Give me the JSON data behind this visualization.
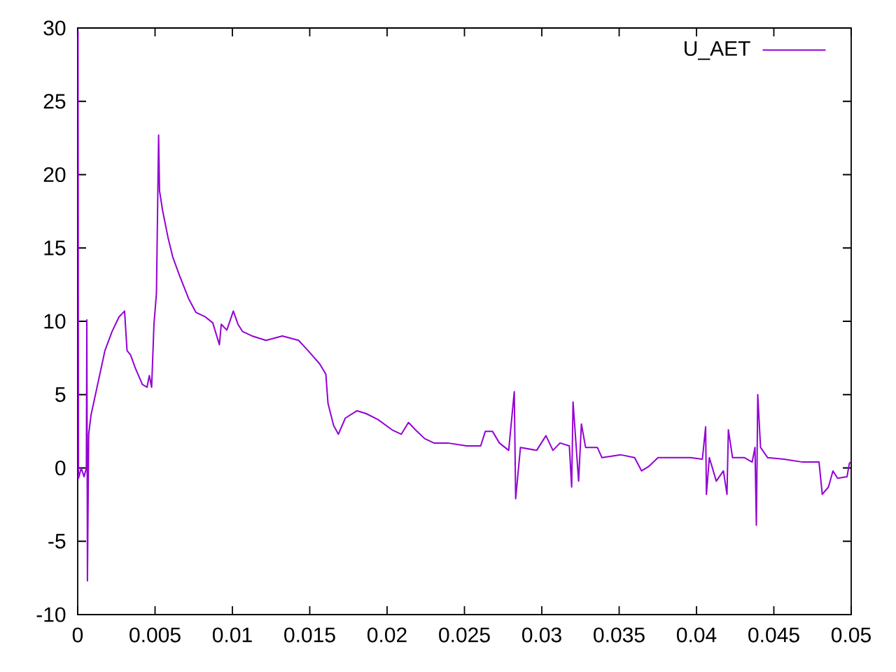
{
  "chart_data": {
    "type": "line",
    "x": [
      0,
      2e-05,
      5e-05,
      0.00023,
      0.00041,
      0.00056,
      0.00059,
      0.00063,
      0.00071,
      0.00086,
      0.00131,
      0.00176,
      0.00222,
      0.00267,
      0.00303,
      0.00319,
      0.00342,
      0.00373,
      0.00418,
      0.00448,
      0.00463,
      0.00478,
      0.00493,
      0.00509,
      0.00523,
      0.00529,
      0.00548,
      0.00584,
      0.00614,
      0.00659,
      0.00719,
      0.00765,
      0.00825,
      0.00873,
      0.00916,
      0.00928,
      0.00964,
      0.01006,
      0.01036,
      0.01066,
      0.01127,
      0.01217,
      0.01323,
      0.01428,
      0.01489,
      0.01564,
      0.01604,
      0.01618,
      0.01654,
      0.01685,
      0.0173,
      0.01805,
      0.01866,
      0.01941,
      0.02032,
      0.02092,
      0.02138,
      0.02183,
      0.02243,
      0.02303,
      0.02394,
      0.02514,
      0.02605,
      0.02635,
      0.02681,
      0.02726,
      0.02786,
      0.02822,
      0.02831,
      0.02862,
      0.02967,
      0.03027,
      0.03072,
      0.03118,
      0.03178,
      0.03193,
      0.03202,
      0.03238,
      0.03256,
      0.03283,
      0.03359,
      0.03389,
      0.03509,
      0.036,
      0.03645,
      0.03691,
      0.03751,
      0.03842,
      0.03962,
      0.04038,
      0.04059,
      0.04064,
      0.04083,
      0.04128,
      0.04174,
      0.04197,
      0.04206,
      0.04233,
      0.0431,
      0.0436,
      0.04378,
      0.04387,
      0.04396,
      0.04414,
      0.0446,
      0.04566,
      0.04686,
      0.04792,
      0.04813,
      0.04853,
      0.04882,
      0.04912,
      0.04973,
      0.04988,
      0.04995
    ],
    "series": [
      {
        "name": "U_AET",
        "color": "#9400d3",
        "values": [
          0,
          29.8,
          -0.7,
          0.0,
          -0.6,
          0.0,
          10.1,
          -7.7,
          2.3,
          3.6,
          5.8,
          8.0,
          9.3,
          10.3,
          10.7,
          8.0,
          7.7,
          6.8,
          5.7,
          5.5,
          6.3,
          5.5,
          9.8,
          11.9,
          22.7,
          18.9,
          17.6,
          15.7,
          14.4,
          13.1,
          11.5,
          10.6,
          10.3,
          9.9,
          8.4,
          9.8,
          9.4,
          10.7,
          9.8,
          9.3,
          9.0,
          8.7,
          9.0,
          8.7,
          8.0,
          7.1,
          6.4,
          4.4,
          2.9,
          2.3,
          3.4,
          3.9,
          3.7,
          3.3,
          2.6,
          2.3,
          3.1,
          2.6,
          2.0,
          1.7,
          1.7,
          1.5,
          1.5,
          2.5,
          2.5,
          1.7,
          1.2,
          5.2,
          -2.1,
          1.4,
          1.2,
          2.2,
          1.2,
          1.7,
          1.5,
          -1.3,
          4.5,
          -0.9,
          3.0,
          1.4,
          1.4,
          0.7,
          0.9,
          0.7,
          -0.2,
          0.1,
          0.7,
          0.7,
          0.7,
          0.6,
          2.8,
          -1.8,
          0.7,
          -0.9,
          -0.2,
          -1.8,
          2.6,
          0.7,
          0.7,
          0.4,
          1.4,
          -3.9,
          5.0,
          1.4,
          0.7,
          0.6,
          0.4,
          0.4,
          -1.8,
          -1.3,
          -0.2,
          -0.7,
          -0.6,
          0.3,
          0.4
        ]
      }
    ],
    "xlim": [
      0,
      0.05
    ],
    "ylim": [
      -10,
      30
    ],
    "xticks": [
      0,
      0.005,
      0.01,
      0.015,
      0.02,
      0.025,
      0.03,
      0.035,
      0.04,
      0.045,
      0.05
    ],
    "yticks": [
      -10,
      -5,
      0,
      5,
      10,
      15,
      20,
      25,
      30
    ],
    "legend": "top right",
    "marker": "none",
    "line_style": "solid"
  }
}
